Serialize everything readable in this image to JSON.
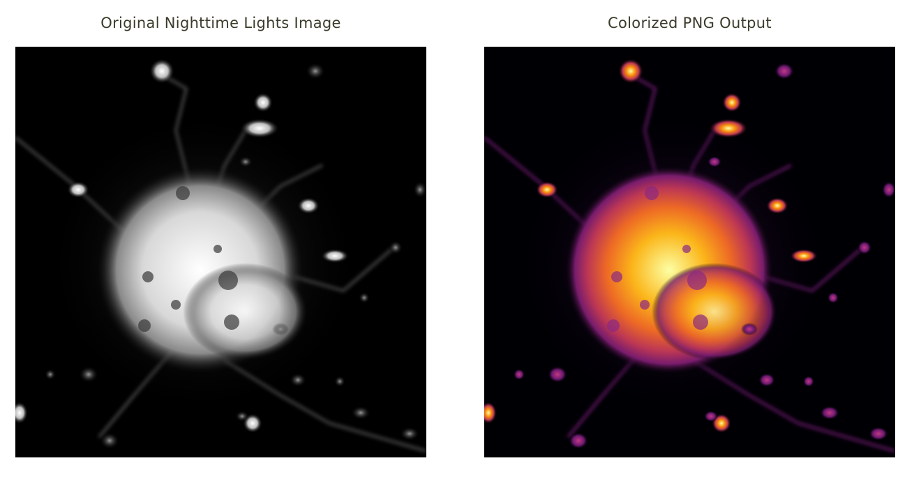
{
  "panels": [
    {
      "title": "Original Nighttime Lights Image",
      "image_description": "grayscale nighttime lights satellite image of a city",
      "colormap": "grayscale"
    },
    {
      "title": "Colorized PNG Output",
      "image_description": "same nighttime lights image rendered with inferno-style colormap",
      "colormap": "inferno"
    }
  ],
  "colors": {
    "title_text": "#3b3b2b",
    "background": "#ffffff",
    "gray_scale": [
      "#000000",
      "#262626",
      "#5e5e5e",
      "#a8a8a8",
      "#e6e6e6",
      "#ffffff"
    ],
    "inferno_scale": [
      "#000004",
      "#320a5e",
      "#781c6d",
      "#bc3754",
      "#ed6925",
      "#fbb61a",
      "#fcffa4"
    ]
  }
}
